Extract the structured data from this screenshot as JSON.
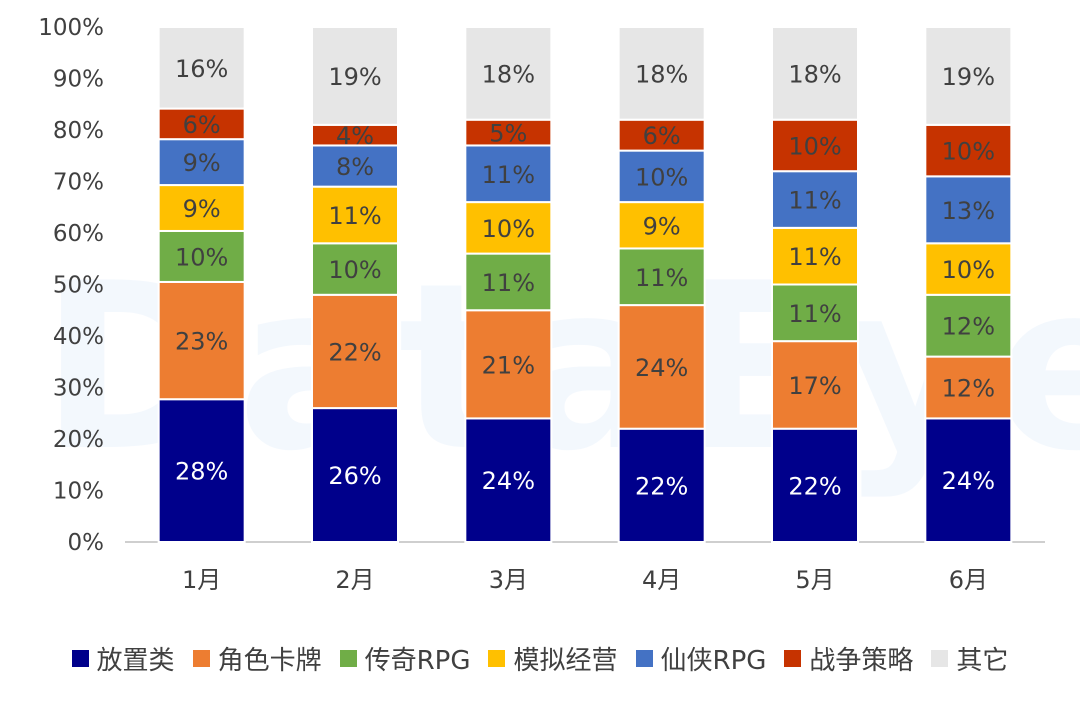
{
  "watermark": "DataEye",
  "chart_data": {
    "type": "bar",
    "stacked": true,
    "percent": true,
    "categories": [
      "1月",
      "2月",
      "3月",
      "4月",
      "5月",
      "6月"
    ],
    "ylim": [
      0,
      100
    ],
    "yticks": [
      "0%",
      "10%",
      "20%",
      "30%",
      "40%",
      "50%",
      "60%",
      "70%",
      "80%",
      "90%",
      "100%"
    ],
    "legend_position": "bottom",
    "series": [
      {
        "name": "放置类",
        "color": "#00008B",
        "label_color": "#ffffff",
        "values": [
          28,
          26,
          24,
          22,
          22,
          24
        ]
      },
      {
        "name": "角色卡牌",
        "color": "#ED7D31",
        "label_color": "#404040",
        "values": [
          23,
          22,
          21,
          24,
          17,
          12
        ]
      },
      {
        "name": "传奇RPG",
        "color": "#70AD47",
        "label_color": "#404040",
        "values": [
          10,
          10,
          11,
          11,
          11,
          12
        ]
      },
      {
        "name": "模拟经营",
        "color": "#FFC000",
        "label_color": "#404040",
        "values": [
          9,
          11,
          10,
          9,
          11,
          10
        ]
      },
      {
        "name": "仙侠RPG",
        "color": "#4472C4",
        "label_color": "#404040",
        "values": [
          9,
          8,
          11,
          10,
          11,
          13
        ]
      },
      {
        "name": "战争策略",
        "color": "#C63300",
        "label_color": "#404040",
        "values": [
          6,
          4,
          5,
          6,
          10,
          10
        ]
      },
      {
        "name": "其它",
        "color": "#E6E6E6",
        "label_color": "#404040",
        "values": [
          16,
          19,
          18,
          18,
          18,
          19
        ]
      }
    ]
  }
}
